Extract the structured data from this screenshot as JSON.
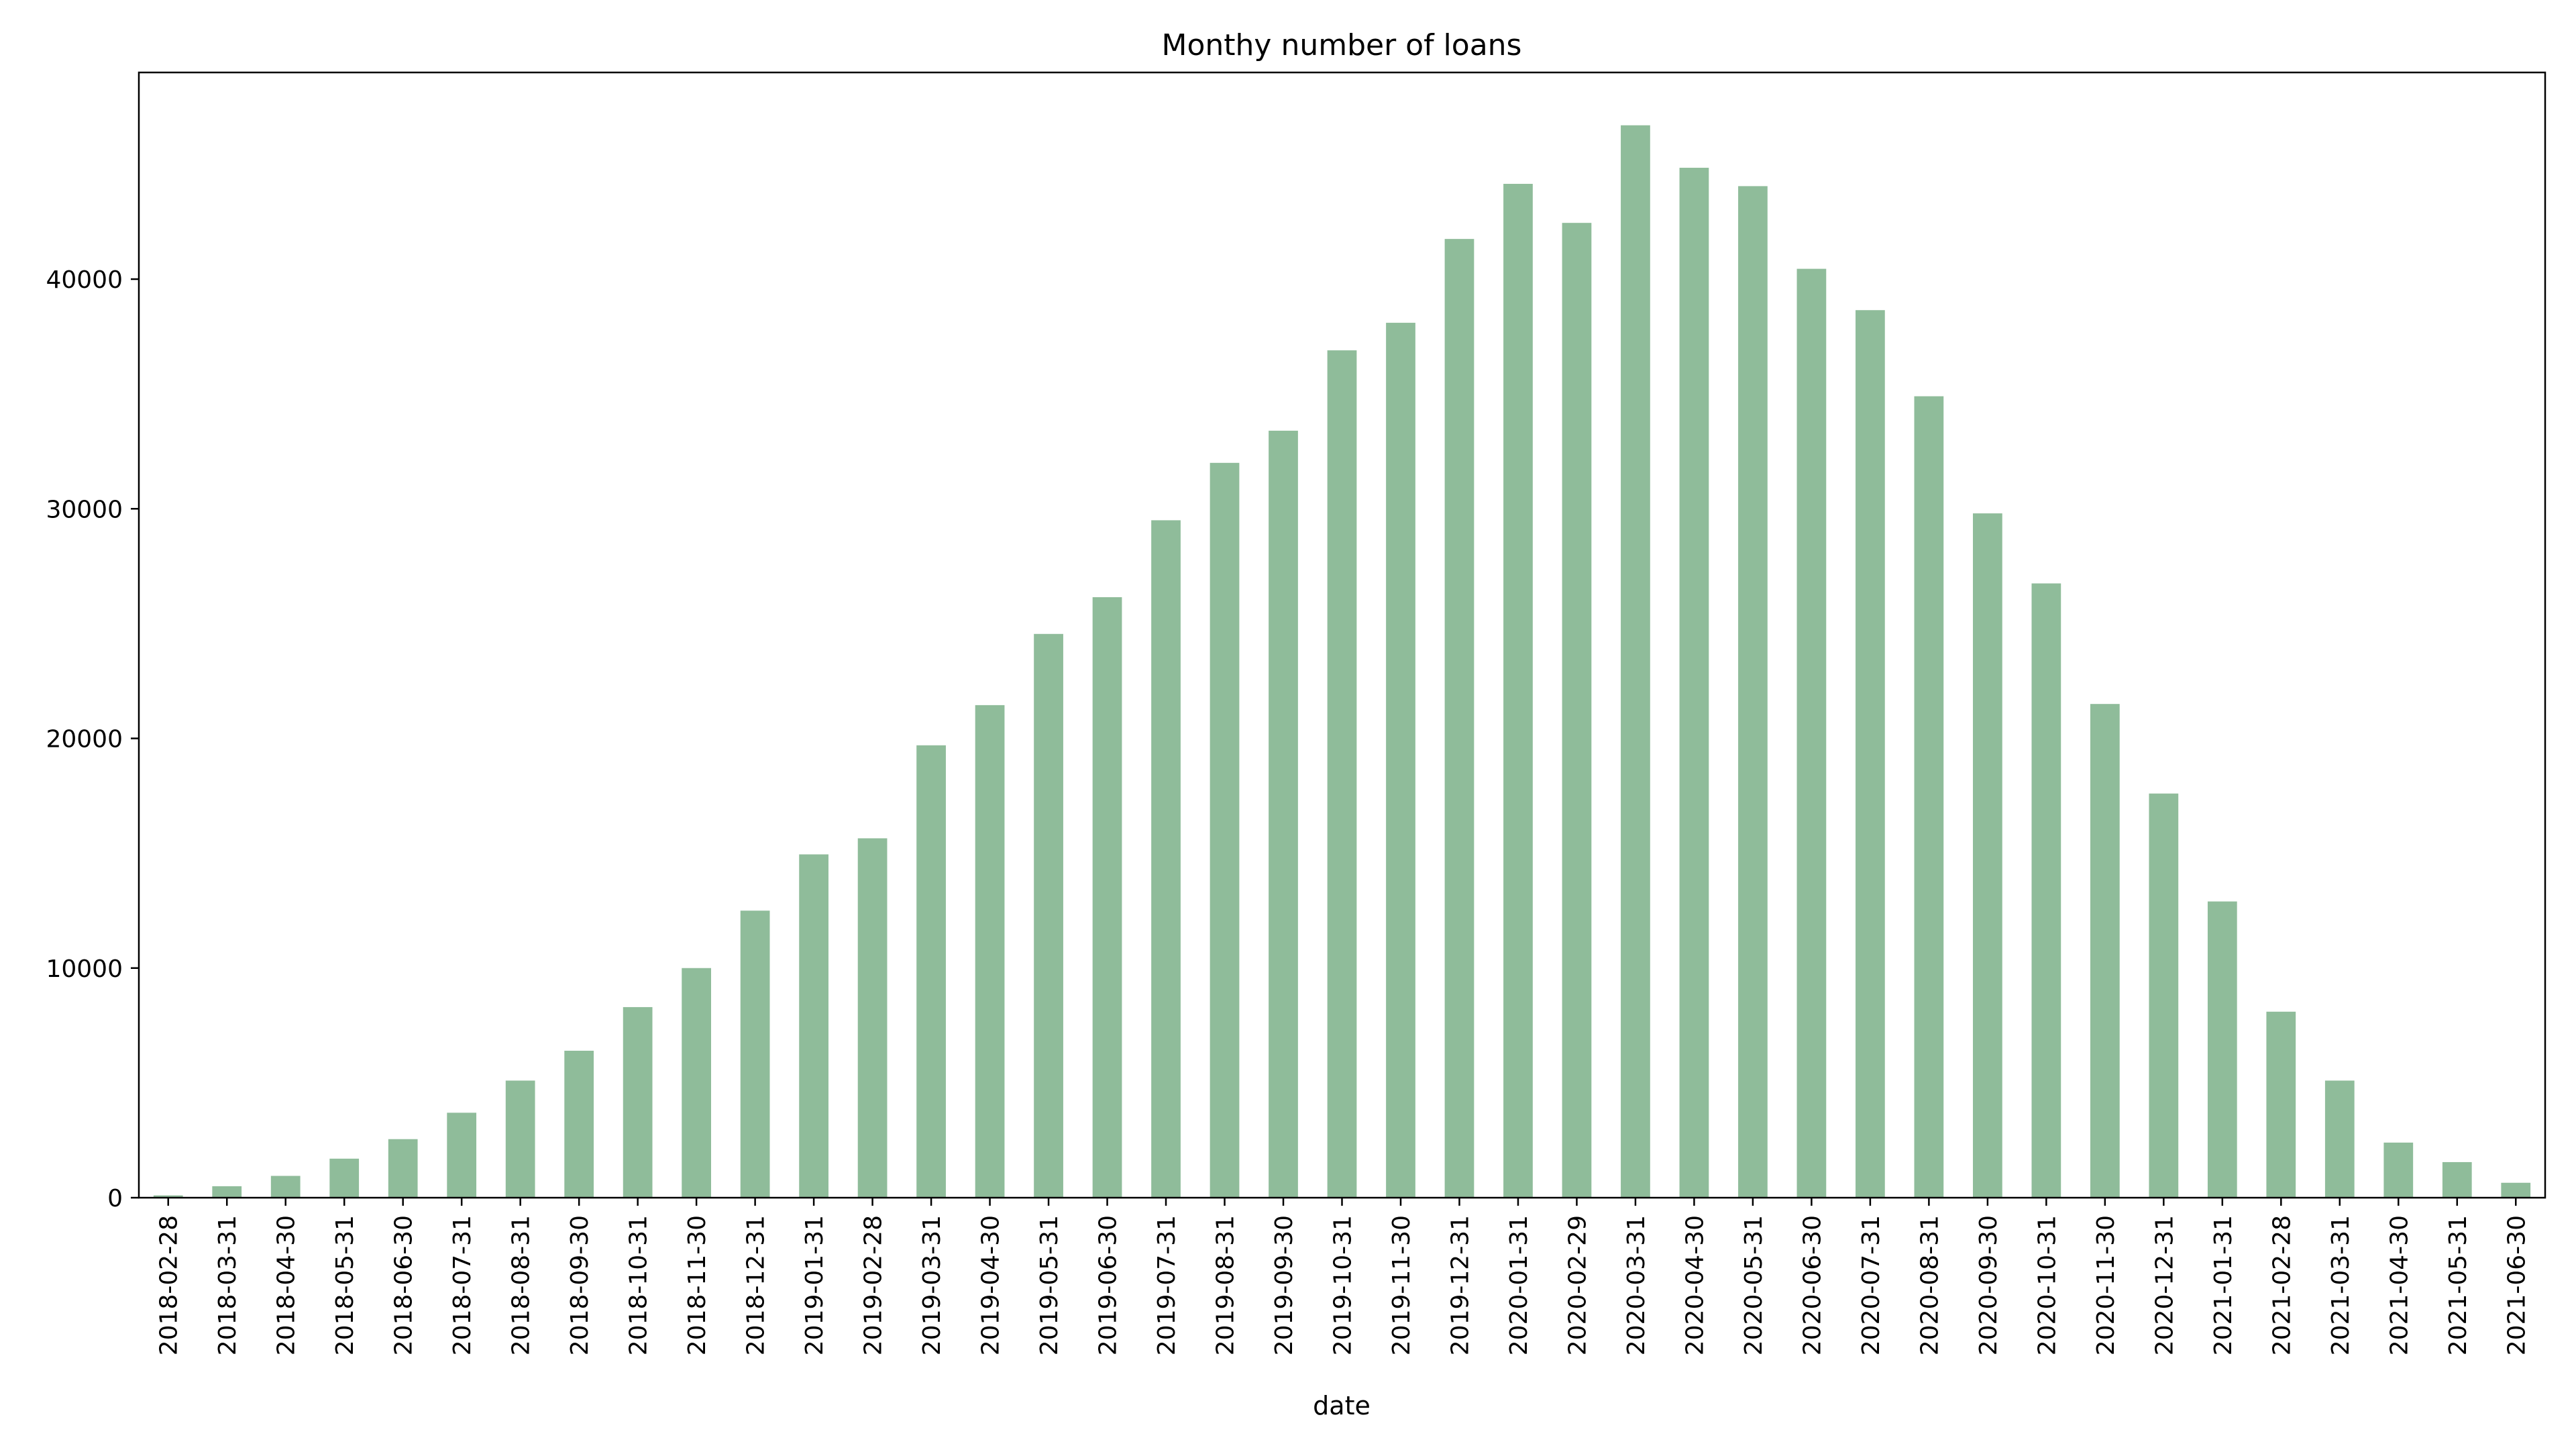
{
  "chart_data": {
    "type": "bar",
    "title": "Monthy number of loans",
    "xlabel": "date",
    "ylabel": "",
    "ylim": [
      0,
      49000
    ],
    "yticks": [
      0,
      10000,
      20000,
      30000,
      40000
    ],
    "ytick_labels": [
      "0",
      "10000",
      "20000",
      "30000",
      "40000"
    ],
    "grid": false,
    "legend": "none",
    "bar_color": "#8fbc9a",
    "categories": [
      "2018-02-28",
      "2018-03-31",
      "2018-04-30",
      "2018-05-31",
      "2018-06-30",
      "2018-07-31",
      "2018-08-31",
      "2018-09-30",
      "2018-10-31",
      "2018-11-30",
      "2018-12-31",
      "2019-01-31",
      "2019-02-28",
      "2019-03-31",
      "2019-04-30",
      "2019-05-31",
      "2019-06-30",
      "2019-07-31",
      "2019-08-31",
      "2019-09-30",
      "2019-10-31",
      "2019-11-30",
      "2019-12-31",
      "2020-01-31",
      "2020-02-29",
      "2020-03-31",
      "2020-04-30",
      "2020-05-31",
      "2020-06-30",
      "2020-07-31",
      "2020-08-31",
      "2020-09-30",
      "2020-10-31",
      "2020-11-30",
      "2020-12-31",
      "2021-01-31",
      "2021-02-28",
      "2021-03-31",
      "2021-04-30",
      "2021-05-31",
      "2021-06-30"
    ],
    "values": [
      100,
      500,
      950,
      1700,
      2550,
      3700,
      5100,
      6400,
      8300,
      10000,
      12500,
      14950,
      15650,
      19700,
      21450,
      24550,
      26150,
      29500,
      32000,
      33400,
      36900,
      38100,
      41750,
      44150,
      42450,
      46700,
      44850,
      44050,
      40450,
      38650,
      34900,
      29800,
      26750,
      21500,
      17600,
      12900,
      8100,
      5100,
      2400,
      1550,
      650
    ]
  }
}
